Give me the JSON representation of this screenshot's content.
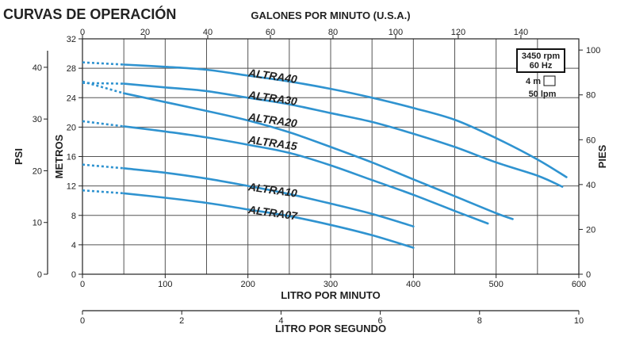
{
  "title": "CURVAS DE OPERACIÓN",
  "chart_data": {
    "type": "line",
    "top_axis": {
      "label": "GALONES POR MINUTO (U.S.A.)",
      "range": [
        0,
        158.5
      ],
      "ticks": [
        0,
        20,
        40,
        60,
        80,
        100,
        120,
        140
      ]
    },
    "bottom_axis": {
      "label": "LITRO POR MINUTO",
      "range": [
        0,
        600
      ],
      "ticks": [
        0,
        100,
        200,
        300,
        400,
        500,
        600
      ]
    },
    "second_bottom_axis": {
      "label": "LITRO POR SEGUNDO",
      "range": [
        0,
        10
      ],
      "ticks": [
        0,
        2,
        4,
        6,
        8,
        10
      ]
    },
    "left_meters_axis": {
      "label": "METROS",
      "range": [
        0,
        32
      ],
      "ticks": [
        0,
        4,
        8,
        12,
        16,
        20,
        24,
        28,
        32
      ]
    },
    "left_psi_axis": {
      "label": "PSI",
      "range": [
        0,
        45.5
      ],
      "ticks": [
        0,
        10,
        20,
        30,
        40
      ]
    },
    "right_feet_axis": {
      "label": "PIES",
      "range": [
        0,
        105
      ],
      "ticks": [
        0,
        20,
        40,
        60,
        80,
        100
      ]
    },
    "grid": true,
    "legend": {
      "line1": "3450 rpm",
      "line2": "60 Hz",
      "scale_v": "4 m",
      "scale_h": "50 lpm"
    },
    "series": [
      {
        "name": "ALTRA40",
        "label_at": [
          200,
          26.9
        ],
        "dashed": [
          [
            0,
            28.8
          ],
          [
            50,
            28.5
          ]
        ],
        "x": [
          50,
          100,
          150,
          200,
          250,
          300,
          350,
          400,
          450,
          500,
          550,
          585
        ],
        "y": [
          28.5,
          28.2,
          27.8,
          27.0,
          26.2,
          25.2,
          24.0,
          22.6,
          21.0,
          18.5,
          15.6,
          13.2
        ]
      },
      {
        "name": "ALTRA30",
        "label_at": [
          200,
          23.9
        ],
        "dashed": [
          [
            0,
            26.0
          ],
          [
            50,
            25.9
          ]
        ],
        "x": [
          50,
          100,
          150,
          200,
          250,
          300,
          350,
          400,
          450,
          500,
          550,
          580
        ],
        "y": [
          25.9,
          25.4,
          24.9,
          24.0,
          23.1,
          21.9,
          20.7,
          19.1,
          17.3,
          15.2,
          13.4,
          11.9
        ]
      },
      {
        "name": "ALTRA20",
        "label_at": [
          200,
          20.9
        ],
        "dashed": [
          [
            0,
            26.2
          ],
          [
            50,
            24.6
          ]
        ],
        "x": [
          50,
          100,
          150,
          200,
          250,
          300,
          350,
          400,
          450,
          500,
          520
        ],
        "y": [
          24.6,
          23.4,
          22.2,
          20.9,
          19.3,
          17.3,
          15.2,
          12.9,
          10.6,
          8.3,
          7.5
        ]
      },
      {
        "name": "ALTRA15",
        "label_at": [
          200,
          17.8
        ],
        "dashed": [
          [
            0,
            20.8
          ],
          [
            50,
            20.1
          ]
        ],
        "x": [
          50,
          100,
          150,
          200,
          250,
          300,
          350,
          400,
          450,
          490
        ],
        "y": [
          20.1,
          19.4,
          18.6,
          17.6,
          16.5,
          14.8,
          12.8,
          10.8,
          8.6,
          6.9
        ]
      },
      {
        "name": "ALTRA10",
        "label_at": [
          200,
          11.4
        ],
        "dashed": [
          [
            0,
            14.9
          ],
          [
            50,
            14.4
          ]
        ],
        "x": [
          50,
          100,
          150,
          200,
          250,
          300,
          350,
          400
        ],
        "y": [
          14.4,
          13.8,
          13.0,
          12.0,
          10.9,
          9.6,
          8.2,
          6.5
        ]
      },
      {
        "name": "ALTRA07",
        "label_at": [
          200,
          8.3
        ],
        "dashed": [
          [
            0,
            11.4
          ],
          [
            50,
            11.0
          ]
        ],
        "x": [
          50,
          100,
          150,
          200,
          250,
          300,
          350,
          400
        ],
        "y": [
          11.0,
          10.4,
          9.7,
          8.8,
          7.9,
          6.7,
          5.3,
          3.6
        ]
      }
    ]
  }
}
